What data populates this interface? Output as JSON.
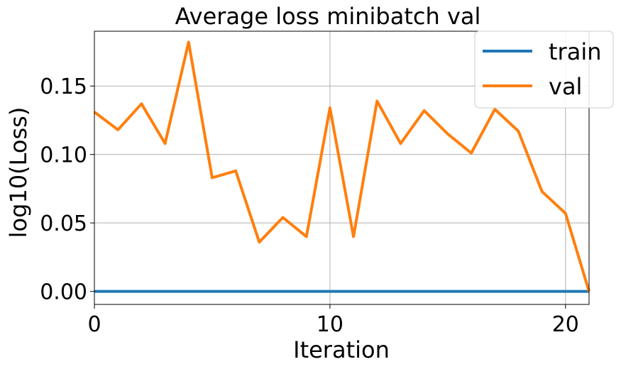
{
  "chart_data": {
    "type": "line",
    "title": "Average loss minibatch val",
    "xlabel": "Iteration",
    "ylabel": "log10(Loss)",
    "xlim": [
      0,
      21
    ],
    "ylim": [
      -0.0095,
      0.19
    ],
    "xticks": [
      0,
      10,
      20
    ],
    "xtick_labels": [
      "0",
      "10",
      "20"
    ],
    "yticks": [
      0.0,
      0.05,
      0.1,
      0.15
    ],
    "ytick_labels": [
      "0.00",
      "0.05",
      "0.10",
      "0.15"
    ],
    "grid": true,
    "legend_position": "top-right",
    "x": [
      0,
      1,
      2,
      3,
      4,
      5,
      6,
      7,
      8,
      9,
      10,
      11,
      12,
      13,
      14,
      15,
      16,
      17,
      18,
      19,
      20,
      21
    ],
    "series": [
      {
        "name": "train",
        "color": "#1f77b4",
        "values": [
          0,
          0,
          0,
          0,
          0,
          0,
          0,
          0,
          0,
          0,
          0,
          0,
          0,
          0,
          0,
          0,
          0,
          0,
          0,
          0,
          0,
          0
        ]
      },
      {
        "name": "val",
        "color": "#ff7f0e",
        "values": [
          0.131,
          0.118,
          0.137,
          0.108,
          0.182,
          0.083,
          0.088,
          0.036,
          0.054,
          0.04,
          0.134,
          0.04,
          0.139,
          0.108,
          0.132,
          0.115,
          0.101,
          0.133,
          0.117,
          0.073,
          0.057,
          0.0
        ]
      }
    ]
  }
}
